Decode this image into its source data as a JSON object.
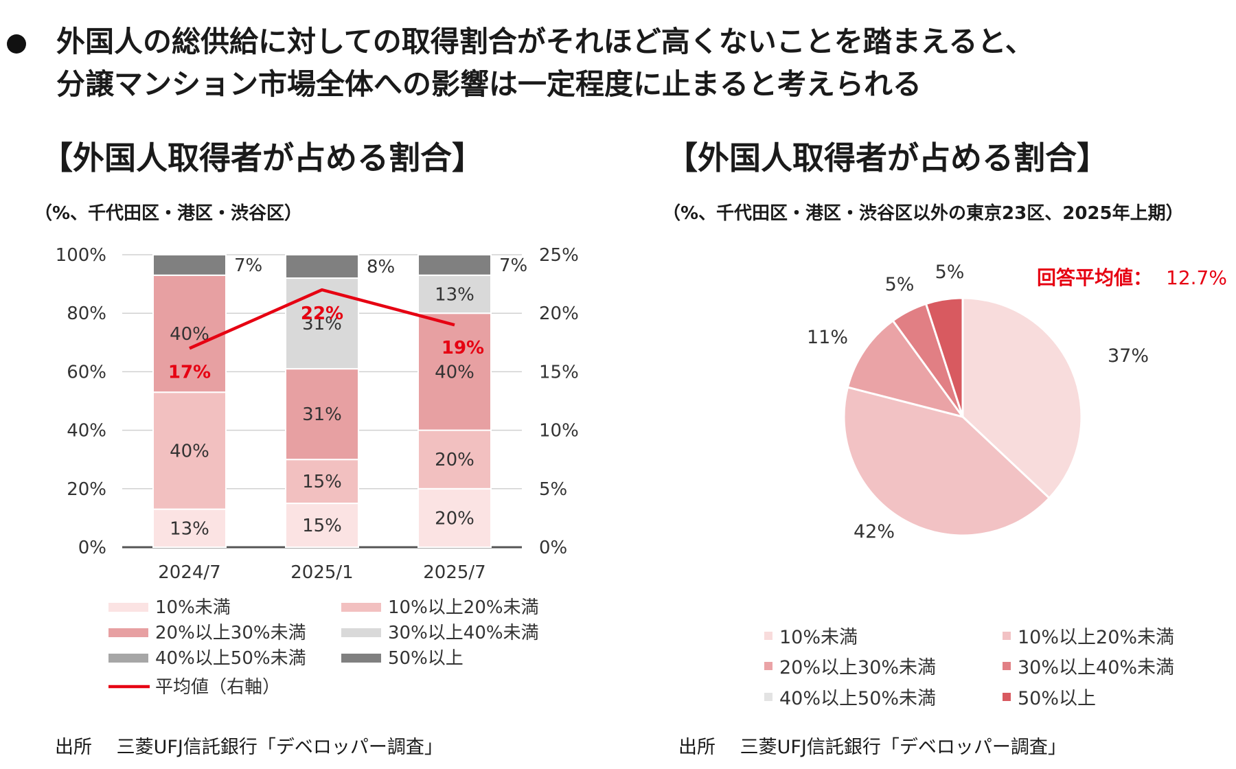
{
  "headline": {
    "line1": "外国人の総供給に対しての取得割合がそれほど高くないことを踏まえると、",
    "line2": "分譲マンション市場全体への影響は一定程度に止まると考えられる"
  },
  "left": {
    "title": "【外国人取得者が占める割合】",
    "subtitle": "（%、千代田区・港区・渋谷区）",
    "source": "出所　 三菱UFJ信託銀行「デベロッパー調査」"
  },
  "right": {
    "title": "【外国人取得者が占める割合】",
    "subtitle": "（%、千代田区・港区・渋谷区以外の東京23区、2025年上期）",
    "source": "出所　 三菱UFJ信託銀行「デベロッパー調査」",
    "annotation_label": "回答平均値：",
    "annotation_value": "12.7%"
  },
  "chart_data": [
    {
      "type": "bar",
      "stacked": true,
      "title": "【外国人取得者が占める割合】",
      "subtitle": "（%、千代田区・港区・渋谷区）",
      "categories": [
        "2024/7",
        "2025/1",
        "2025/7"
      ],
      "series": [
        {
          "name": "10%未満",
          "values": [
            13,
            15,
            20
          ],
          "color": "#fbe3e3"
        },
        {
          "name": "10%以上20%未満",
          "values": [
            40,
            15,
            20
          ],
          "color": "#f2c0c0"
        },
        {
          "name": "20%以上30%未満",
          "values": [
            40,
            31,
            40
          ],
          "color": "#e7a0a2"
        },
        {
          "name": "30%以上40%未満",
          "values": [
            0,
            31,
            13
          ],
          "color": "#d9d9d9"
        },
        {
          "name": "40%以上50%未満",
          "values": [
            0,
            0,
            0
          ],
          "color": "#a6a6a6"
        },
        {
          "name": "50%以上",
          "values": [
            7,
            8,
            7
          ],
          "color": "#808080"
        }
      ],
      "line_series": {
        "name": "平均値（右軸）",
        "values": [
          17,
          22,
          19
        ],
        "labels": [
          "17%",
          "22%",
          "19%"
        ],
        "color": "#e60012",
        "axis": "right"
      },
      "y_left": {
        "min": 0,
        "max": 100,
        "ticks": [
          "0%",
          "20%",
          "40%",
          "60%",
          "80%",
          "100%"
        ]
      },
      "y_right": {
        "min": 0,
        "max": 25,
        "ticks": [
          "0%",
          "5%",
          "10%",
          "15%",
          "20%",
          "25%"
        ]
      },
      "legend_position": "bottom"
    },
    {
      "type": "pie",
      "title": "【外国人取得者が占める割合】",
      "subtitle": "（%、千代田区・港区・渋谷区以外の東京23区、2025年上期）",
      "slices": [
        {
          "name": "10%未満",
          "value": 37,
          "label": "37%",
          "color": "#f8dcdc"
        },
        {
          "name": "10%以上20%未満",
          "value": 42,
          "label": "42%",
          "color": "#f2c2c4"
        },
        {
          "name": "20%以上30%未満",
          "value": 11,
          "label": "11%",
          "color": "#eaa3a6"
        },
        {
          "name": "30%以上40%未満",
          "value": 5,
          "label": "5%",
          "color": "#e17f84"
        },
        {
          "name": "40%以上50%未満",
          "value": 0,
          "label": "",
          "color": "#e3e3e3"
        },
        {
          "name": "50%以上",
          "value": 5,
          "label": "5%",
          "color": "#d85a60"
        }
      ],
      "average": "12.7%",
      "legend_position": "bottom"
    }
  ]
}
